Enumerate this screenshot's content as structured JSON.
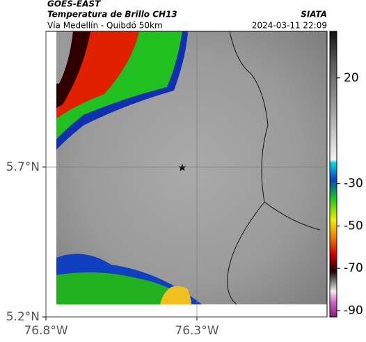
{
  "header": {
    "source": "GOES-EAST",
    "title": "Temperatura de Brillo CH13",
    "org": "SIATA",
    "subtitle": "Vía Medellín - Quibdó 50km",
    "datetime": "2024-03-11 22:09"
  },
  "map": {
    "xlim": [
      -76.8,
      -75.869
    ],
    "ylim": [
      5.2,
      6.153
    ],
    "xticks": [
      {
        "value": -76.8,
        "label": "76.8°W"
      },
      {
        "value": -76.3,
        "label": "76.3°W"
      }
    ],
    "yticks": [
      {
        "value": 5.7,
        "label": "5.7°N"
      },
      {
        "value": 5.2,
        "label": "5.2°N"
      }
    ],
    "grid": true
  },
  "colorbar": {
    "lim": [
      -93,
      42
    ],
    "ticks": [
      20,
      -30,
      -50,
      -70,
      -90
    ]
  }
}
